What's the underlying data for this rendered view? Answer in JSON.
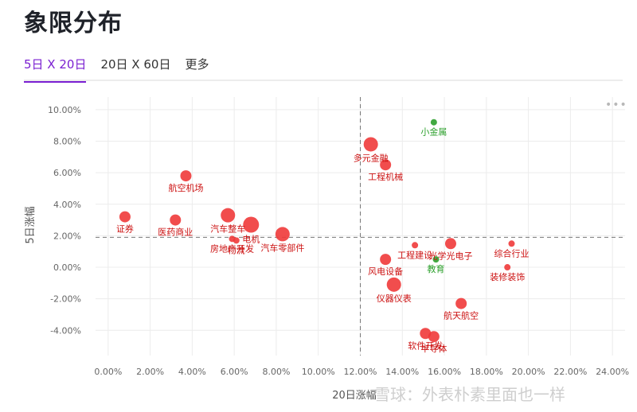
{
  "title": "象限分布",
  "tabs": [
    {
      "label": "5日 X 20日",
      "active": true
    },
    {
      "label": "20日 X 60日",
      "active": false
    },
    {
      "label": "更多",
      "active": false
    }
  ],
  "more_label": "•••",
  "watermark": "雪球：外表朴素里面也一样",
  "colors": {
    "accent": "#7a1fd1",
    "point_red": "#f03a3a",
    "point_green": "#2ca02c",
    "label_red": "#cc1111",
    "label_green": "#2ca02c"
  },
  "chart_data": {
    "type": "scatter",
    "title": "",
    "xlabel": "20日涨幅",
    "ylabel": "5日涨幅",
    "xlim": [
      -0.6,
      24.6
    ],
    "ylim": [
      -5.6,
      10.8
    ],
    "x_ticks": [
      "0.00%",
      "2.00%",
      "4.00%",
      "6.00%",
      "8.00%",
      "10.00%",
      "12.00%",
      "14.00%",
      "16.00%",
      "18.00%",
      "20.00%",
      "22.00%",
      "24.00%"
    ],
    "y_ticks": [
      "10.00%",
      "8.00%",
      "6.00%",
      "4.00%",
      "2.00%",
      "0.00%",
      "-2.00%",
      "-4.00%"
    ],
    "crosshair": {
      "x": 12.0,
      "y": 1.9
    },
    "grid": true,
    "legend": "none",
    "points": [
      {
        "name": "小金属",
        "x": 15.5,
        "y": 9.2,
        "size": "small",
        "color": "green"
      },
      {
        "name": "多元金融",
        "x": 12.5,
        "y": 7.8,
        "size": "large",
        "color": "red"
      },
      {
        "name": "工程机械",
        "x": 13.2,
        "y": 6.5,
        "size": "medium",
        "color": "red"
      },
      {
        "name": "航空机场",
        "x": 3.7,
        "y": 5.8,
        "size": "medium",
        "color": "red"
      },
      {
        "name": "证券",
        "x": 0.8,
        "y": 3.2,
        "size": "medium",
        "color": "red"
      },
      {
        "name": "医药商业",
        "x": 3.2,
        "y": 3.0,
        "size": "medium",
        "color": "red"
      },
      {
        "name": "汽车整车",
        "x": 5.7,
        "y": 3.3,
        "size": "large",
        "color": "red"
      },
      {
        "name": "电机",
        "x": 6.8,
        "y": 2.7,
        "size": "xlarge",
        "color": "red"
      },
      {
        "name": "汽车零部件",
        "x": 8.3,
        "y": 2.1,
        "size": "large",
        "color": "red"
      },
      {
        "name": "房地产开发",
        "x": 5.9,
        "y": 1.8,
        "size": "small",
        "color": "red"
      },
      {
        "name": "物流",
        "x": 6.1,
        "y": 1.7,
        "size": "small",
        "color": "red"
      },
      {
        "name": "工程建设",
        "x": 14.6,
        "y": 1.4,
        "size": "small",
        "color": "red"
      },
      {
        "name": "光学光电子",
        "x": 16.3,
        "y": 1.5,
        "size": "medium",
        "color": "red"
      },
      {
        "name": "教育",
        "x": 15.6,
        "y": 0.5,
        "size": "small",
        "color": "green"
      },
      {
        "name": "综合行业",
        "x": 19.2,
        "y": 1.5,
        "size": "small",
        "color": "red"
      },
      {
        "name": "风电设备",
        "x": 13.2,
        "y": 0.5,
        "size": "medium",
        "color": "red"
      },
      {
        "name": "装修装饰",
        "x": 19.0,
        "y": 0.0,
        "size": "small",
        "color": "red"
      },
      {
        "name": "仪器仪表",
        "x": 13.6,
        "y": -1.1,
        "size": "large",
        "color": "red"
      },
      {
        "name": "航天航空",
        "x": 16.8,
        "y": -2.3,
        "size": "medium",
        "color": "red"
      },
      {
        "name": "软件开发",
        "x": 15.1,
        "y": -4.2,
        "size": "medium",
        "color": "red"
      },
      {
        "name": "半导体",
        "x": 15.5,
        "y": -4.4,
        "size": "medium",
        "color": "red"
      }
    ]
  }
}
